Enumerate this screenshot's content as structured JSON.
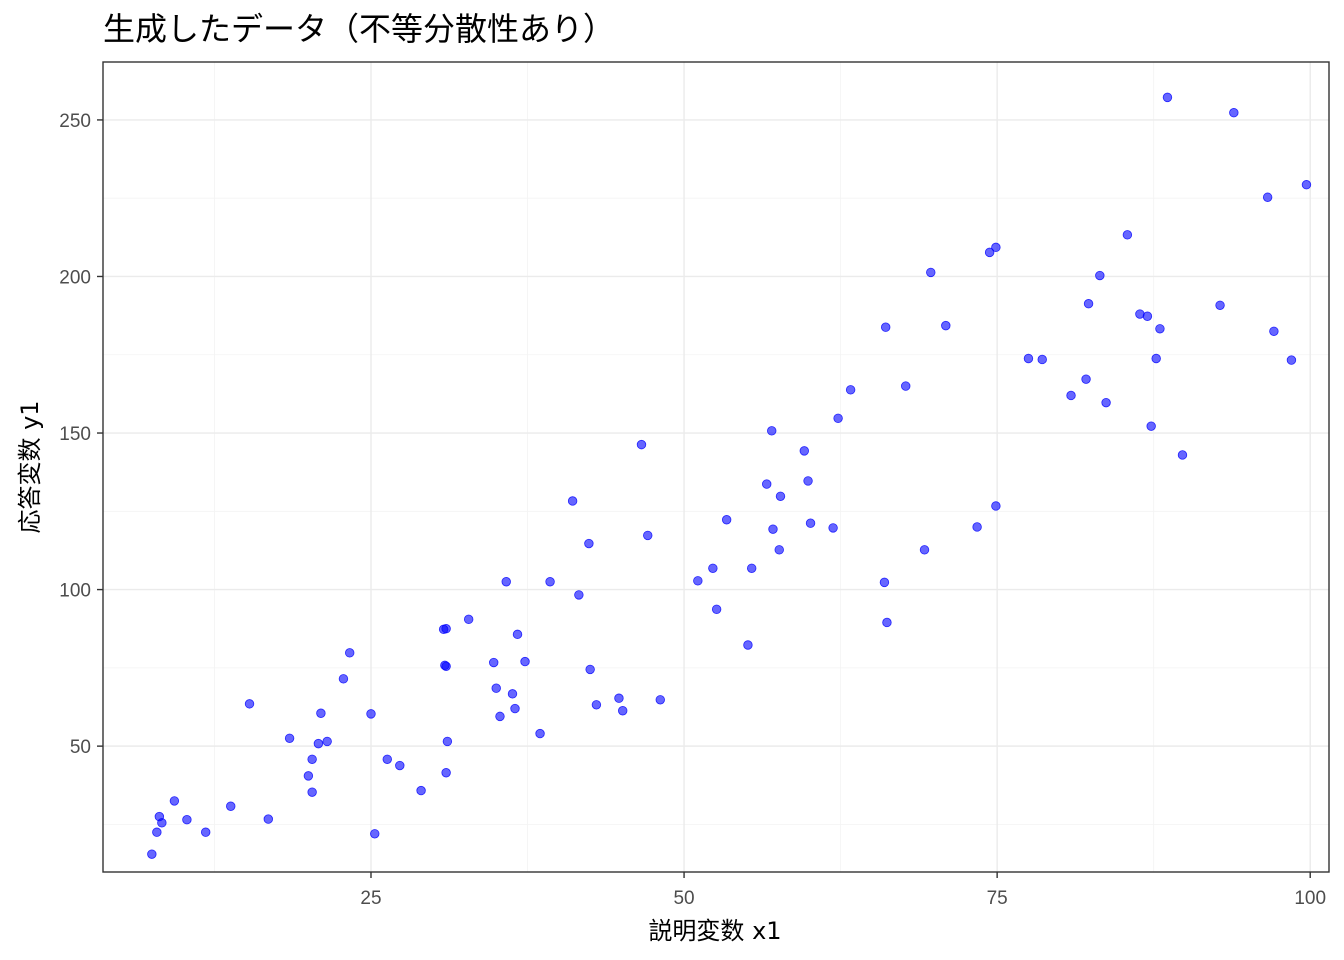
{
  "chart_data": {
    "type": "scatter",
    "title": "生成したデータ（不等分散性あり）",
    "xlabel": "説明変数 x1",
    "ylabel": "応答変数 y1",
    "xlim": [
      3.6,
      101.5
    ],
    "ylim": [
      9.8,
      268.5
    ],
    "x_ticks": [
      25,
      50,
      75,
      100
    ],
    "y_ticks": [
      50,
      100,
      150,
      200,
      250
    ],
    "x_tick_labels": [
      "25",
      "50",
      "75",
      "100"
    ],
    "y_tick_labels": [
      "50",
      "100",
      "150",
      "200",
      "250"
    ],
    "grid": true,
    "point_color": "#0000ff",
    "point_alpha": 0.6,
    "points": [
      {
        "x": 7.5,
        "y": 15.5
      },
      {
        "x": 7.9,
        "y": 22.5
      },
      {
        "x": 8.1,
        "y": 27.5
      },
      {
        "x": 8.3,
        "y": 25.5
      },
      {
        "x": 9.3,
        "y": 32.5
      },
      {
        "x": 10.3,
        "y": 26.5
      },
      {
        "x": 11.8,
        "y": 22.5
      },
      {
        "x": 13.8,
        "y": 30.8
      },
      {
        "x": 15.3,
        "y": 63.5
      },
      {
        "x": 16.8,
        "y": 26.7
      },
      {
        "x": 18.5,
        "y": 52.5
      },
      {
        "x": 20.0,
        "y": 40.5
      },
      {
        "x": 20.3,
        "y": 45.8
      },
      {
        "x": 20.3,
        "y": 35.3
      },
      {
        "x": 20.8,
        "y": 50.8
      },
      {
        "x": 21.0,
        "y": 60.5
      },
      {
        "x": 21.5,
        "y": 51.5
      },
      {
        "x": 22.8,
        "y": 71.5
      },
      {
        "x": 23.3,
        "y": 79.8
      },
      {
        "x": 25.0,
        "y": 60.3
      },
      {
        "x": 25.3,
        "y": 22.0
      },
      {
        "x": 26.3,
        "y": 45.8
      },
      {
        "x": 27.3,
        "y": 43.8
      },
      {
        "x": 29.0,
        "y": 35.8
      },
      {
        "x": 30.8,
        "y": 87.3
      },
      {
        "x": 31.0,
        "y": 87.5
      },
      {
        "x": 31.0,
        "y": 75.5
      },
      {
        "x": 30.9,
        "y": 75.8
      },
      {
        "x": 31.1,
        "y": 51.5
      },
      {
        "x": 31.0,
        "y": 41.5
      },
      {
        "x": 32.8,
        "y": 90.5
      },
      {
        "x": 34.8,
        "y": 76.7
      },
      {
        "x": 35.0,
        "y": 68.5
      },
      {
        "x": 35.3,
        "y": 59.5
      },
      {
        "x": 35.8,
        "y": 102.5
      },
      {
        "x": 36.3,
        "y": 66.7
      },
      {
        "x": 36.5,
        "y": 62.0
      },
      {
        "x": 36.7,
        "y": 85.7
      },
      {
        "x": 37.3,
        "y": 77.0
      },
      {
        "x": 38.5,
        "y": 54.0
      },
      {
        "x": 39.3,
        "y": 102.5
      },
      {
        "x": 41.1,
        "y": 128.3
      },
      {
        "x": 41.6,
        "y": 98.3
      },
      {
        "x": 42.4,
        "y": 114.7
      },
      {
        "x": 42.5,
        "y": 74.5
      },
      {
        "x": 43.0,
        "y": 63.2
      },
      {
        "x": 44.8,
        "y": 65.3
      },
      {
        "x": 45.1,
        "y": 61.3
      },
      {
        "x": 46.6,
        "y": 146.3
      },
      {
        "x": 47.1,
        "y": 117.3
      },
      {
        "x": 48.1,
        "y": 64.8
      },
      {
        "x": 51.1,
        "y": 102.8
      },
      {
        "x": 52.3,
        "y": 106.8
      },
      {
        "x": 52.6,
        "y": 93.7
      },
      {
        "x": 53.4,
        "y": 122.3
      },
      {
        "x": 55.1,
        "y": 82.3
      },
      {
        "x": 55.4,
        "y": 106.8
      },
      {
        "x": 56.6,
        "y": 133.7
      },
      {
        "x": 57.0,
        "y": 150.7
      },
      {
        "x": 57.1,
        "y": 119.3
      },
      {
        "x": 57.6,
        "y": 112.7
      },
      {
        "x": 57.7,
        "y": 129.8
      },
      {
        "x": 59.6,
        "y": 144.3
      },
      {
        "x": 59.9,
        "y": 134.7
      },
      {
        "x": 60.1,
        "y": 121.2
      },
      {
        "x": 61.9,
        "y": 119.7
      },
      {
        "x": 62.3,
        "y": 154.7
      },
      {
        "x": 63.3,
        "y": 163.8
      },
      {
        "x": 66.1,
        "y": 183.8
      },
      {
        "x": 66.0,
        "y": 102.3
      },
      {
        "x": 66.2,
        "y": 89.5
      },
      {
        "x": 67.7,
        "y": 165.0
      },
      {
        "x": 69.2,
        "y": 112.7
      },
      {
        "x": 69.7,
        "y": 201.3
      },
      {
        "x": 70.9,
        "y": 184.3
      },
      {
        "x": 73.4,
        "y": 120.0
      },
      {
        "x": 74.4,
        "y": 207.7
      },
      {
        "x": 74.9,
        "y": 209.3
      },
      {
        "x": 74.9,
        "y": 126.7
      },
      {
        "x": 77.5,
        "y": 173.8
      },
      {
        "x": 78.6,
        "y": 173.5
      },
      {
        "x": 80.9,
        "y": 162.0
      },
      {
        "x": 82.1,
        "y": 167.2
      },
      {
        "x": 82.3,
        "y": 191.3
      },
      {
        "x": 83.2,
        "y": 200.3
      },
      {
        "x": 83.7,
        "y": 159.7
      },
      {
        "x": 85.4,
        "y": 213.3
      },
      {
        "x": 86.4,
        "y": 188.0
      },
      {
        "x": 87.0,
        "y": 187.3
      },
      {
        "x": 87.3,
        "y": 152.2
      },
      {
        "x": 87.7,
        "y": 173.8
      },
      {
        "x": 88.0,
        "y": 183.3
      },
      {
        "x": 88.6,
        "y": 257.2
      },
      {
        "x": 89.8,
        "y": 143.0
      },
      {
        "x": 92.8,
        "y": 190.8
      },
      {
        "x": 93.9,
        "y": 252.3
      },
      {
        "x": 96.6,
        "y": 225.3
      },
      {
        "x": 97.1,
        "y": 182.5
      },
      {
        "x": 98.5,
        "y": 173.3
      },
      {
        "x": 99.7,
        "y": 229.3
      }
    ]
  }
}
